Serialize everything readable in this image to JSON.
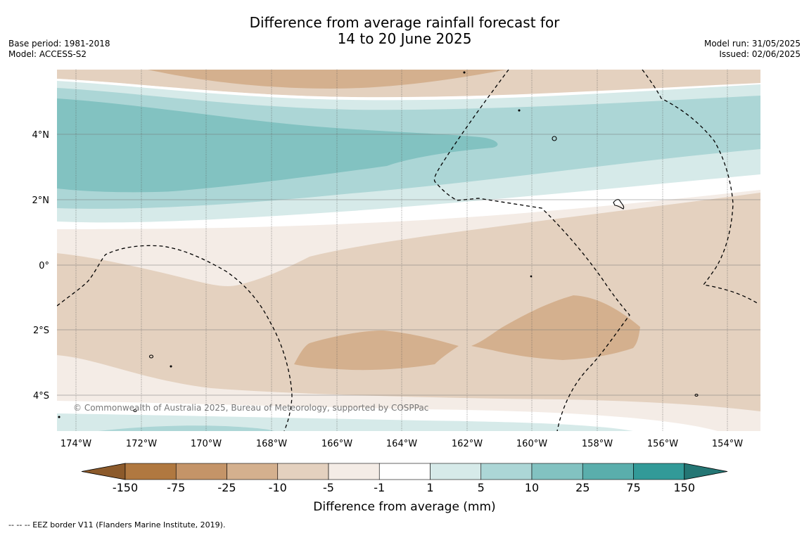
{
  "header": {
    "title_line1": "Difference from average rainfall forecast for",
    "title_line2": "14 to 20 June 2025",
    "base_period": "Base period: 1981-2018",
    "model": "Model: ACCESS-S2",
    "model_run": "Model run: 31/05/2025",
    "issued": "Issued: 02/06/2025"
  },
  "map": {
    "lat_labels": [
      "4°N",
      "2°N",
      "0°",
      "2°S",
      "4°S"
    ],
    "lon_labels": [
      "174°W",
      "172°W",
      "170°W",
      "168°W",
      "166°W",
      "164°W",
      "162°W",
      "160°W",
      "158°W",
      "156°W",
      "154°W"
    ],
    "copyright": "© Commonwealth of Australia 2025, Bureau of Meteorology, supported by COSPPac"
  },
  "legend": {
    "title": "Difference from average (mm)",
    "ticks": [
      "-150",
      "-75",
      "-25",
      "-10",
      "-5",
      "-1",
      "1",
      "5",
      "10",
      "25",
      "75",
      "150"
    ],
    "colors": [
      "#8c5a2b",
      "#b07840",
      "#c49468",
      "#d4b08e",
      "#e4d1bf",
      "#f4ece6",
      "#ffffff",
      "#d6eae9",
      "#acd6d6",
      "#82c2c1",
      "#5aaeac",
      "#329a98",
      "#247674"
    ]
  },
  "footnote": "--  --  -- EEZ border V11 (Flanders Marine Institute, 2019)."
}
